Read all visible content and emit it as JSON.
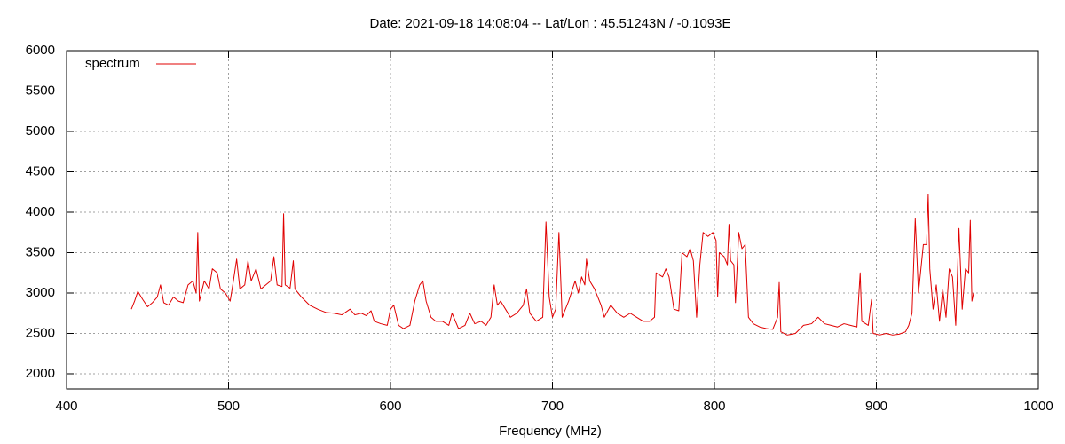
{
  "chart_data": {
    "type": "line",
    "title": "Date: 2021-09-18 14:08:04  --  Lat/Lon : 45.51243N / -0.1093E",
    "x_label": "Frequency (MHz)",
    "xlim": [
      400,
      1000
    ],
    "xticks": [
      400,
      500,
      600,
      700,
      800,
      900,
      1000
    ],
    "ylim": [
      1813,
      6000
    ],
    "yticks": [
      2000,
      2500,
      3000,
      3500,
      4000,
      4500,
      5000,
      5500,
      6000
    ],
    "grid": true,
    "legend": "top-left",
    "x": [
      440,
      442,
      444,
      447,
      450,
      453,
      456,
      458,
      460,
      463,
      466,
      469,
      472,
      475,
      478,
      480,
      481,
      482,
      485,
      488,
      490,
      493,
      495,
      498,
      501,
      503,
      505,
      507,
      510,
      512,
      514,
      517,
      520,
      523,
      526,
      528,
      530,
      533,
      534,
      535,
      538,
      540,
      541,
      545,
      550,
      555,
      560,
      565,
      570,
      575,
      578,
      582,
      585,
      588,
      590,
      594,
      598,
      600,
      602,
      605,
      608,
      612,
      615,
      618,
      620,
      622,
      625,
      628,
      632,
      636,
      638,
      642,
      646,
      649,
      652,
      656,
      659,
      662,
      664,
      666,
      668,
      671,
      674,
      678,
      682,
      684,
      686,
      690,
      694,
      696,
      698,
      700,
      702,
      704,
      706,
      710,
      714,
      716,
      718,
      720,
      721,
      723,
      726,
      730,
      732,
      736,
      740,
      744,
      748,
      752,
      756,
      760,
      763,
      764,
      768,
      770,
      772,
      775,
      778,
      780,
      783,
      785,
      787,
      789,
      791,
      793,
      796,
      799,
      801,
      802,
      803,
      806,
      808,
      809,
      810,
      812,
      813,
      815,
      817,
      819,
      821,
      824,
      828,
      832,
      836,
      839,
      840,
      841,
      845,
      850,
      855,
      860,
      864,
      868,
      872,
      876,
      880,
      884,
      888,
      890,
      891,
      895,
      897,
      898,
      902,
      906,
      910,
      914,
      918,
      920,
      922,
      924,
      926,
      929,
      931,
      932,
      933,
      935,
      937,
      939,
      941,
      943,
      945,
      947,
      949,
      951,
      953,
      955,
      957,
      958,
      959,
      960
    ],
    "series": [
      {
        "name": "spectrum",
        "color": "#e00000",
        "values": [
          2800,
          2900,
          3020,
          2920,
          2830,
          2880,
          2950,
          3100,
          2880,
          2850,
          2950,
          2900,
          2880,
          3100,
          3150,
          3000,
          3750,
          2900,
          3150,
          3050,
          3300,
          3250,
          3050,
          3000,
          2900,
          3150,
          3420,
          3050,
          3100,
          3400,
          3150,
          3300,
          3050,
          3100,
          3150,
          3450,
          3100,
          3080,
          3980,
          3100,
          3060,
          3400,
          3050,
          2950,
          2850,
          2800,
          2760,
          2750,
          2730,
          2800,
          2730,
          2750,
          2720,
          2780,
          2650,
          2620,
          2600,
          2800,
          2850,
          2600,
          2560,
          2600,
          2900,
          3100,
          3150,
          2900,
          2700,
          2650,
          2650,
          2600,
          2750,
          2560,
          2600,
          2750,
          2620,
          2650,
          2600,
          2700,
          3100,
          2850,
          2900,
          2800,
          2700,
          2750,
          2850,
          3050,
          2750,
          2650,
          2700,
          3880,
          2950,
          2700,
          2800,
          3750,
          2700,
          2900,
          3150,
          3000,
          3200,
          3100,
          3420,
          3150,
          3050,
          2850,
          2700,
          2850,
          2750,
          2700,
          2750,
          2700,
          2650,
          2650,
          2700,
          3250,
          3200,
          3300,
          3200,
          2800,
          2780,
          3500,
          3450,
          3550,
          3400,
          2700,
          3350,
          3750,
          3700,
          3750,
          3650,
          2950,
          3500,
          3450,
          3350,
          3850,
          3400,
          3350,
          2880,
          3750,
          3550,
          3600,
          2700,
          2620,
          2580,
          2560,
          2550,
          2700,
          3130,
          2520,
          2480,
          2500,
          2600,
          2620,
          2700,
          2620,
          2600,
          2580,
          2620,
          2600,
          2580,
          3250,
          2650,
          2600,
          2920,
          2500,
          2480,
          2500,
          2480,
          2490,
          2520,
          2600,
          2750,
          3920,
          3000,
          3600,
          3600,
          4220,
          3300,
          2800,
          3100,
          2650,
          3050,
          2700,
          3300,
          3200,
          2600,
          3800,
          2800,
          3300,
          3250,
          3900,
          2900,
          3000
        ]
      }
    ]
  }
}
